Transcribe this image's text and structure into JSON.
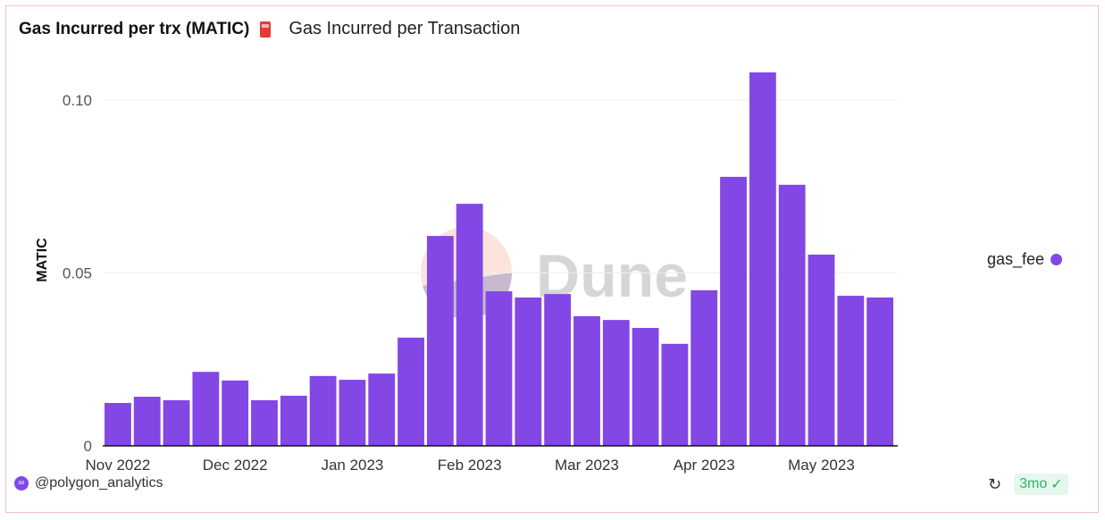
{
  "header": {
    "title": "Gas Incurred per trx (MATIC)",
    "subtitle": "Gas Incurred per Transaction"
  },
  "footer": {
    "author": "@polygon_analytics",
    "age": "3mo"
  },
  "colors": {
    "bar": "#8247e5"
  },
  "chart_data": {
    "type": "bar",
    "title": "Gas Incurred per trx (MATIC)",
    "xlabel": "",
    "ylabel": "MATIC",
    "ylim": [
      0,
      0.1
    ],
    "yticks": [
      {
        "v": 0,
        "label": "0"
      },
      {
        "v": 0.05,
        "label": "0.05"
      },
      {
        "v": 0.1,
        "label": "0.10"
      }
    ],
    "xticks": [
      {
        "i": 0,
        "label": "Nov 2022"
      },
      {
        "i": 4,
        "label": "Dec 2022"
      },
      {
        "i": 8,
        "label": "Jan 2023"
      },
      {
        "i": 12,
        "label": "Feb 2023"
      },
      {
        "i": 16,
        "label": "Mar 2023"
      },
      {
        "i": 20,
        "label": "Apr 2023"
      },
      {
        "i": 24,
        "label": "May 2023"
      }
    ],
    "legend": {
      "position": "right",
      "entries": [
        "gas_fee"
      ]
    },
    "grid": true,
    "series": [
      {
        "name": "gas_fee",
        "values": [
          0.0124,
          0.0142,
          0.0132,
          0.0214,
          0.0189,
          0.0132,
          0.0145,
          0.0202,
          0.0191,
          0.0209,
          0.0313,
          0.0607,
          0.07,
          0.0447,
          0.0429,
          0.0439,
          0.0375,
          0.0364,
          0.0341,
          0.0295,
          0.045,
          0.0778,
          0.108,
          0.0755,
          0.0553,
          0.0434,
          0.0429
        ]
      }
    ]
  }
}
